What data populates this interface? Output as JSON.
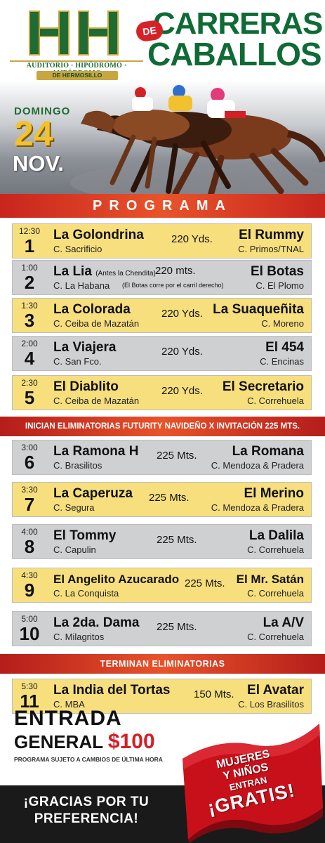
{
  "header": {
    "logo_text": "HH",
    "logo_banner": "AUDITORIO · HIPÓDROMO · AUTÓDROMO",
    "logo_sub": "DE HERMOSILLO",
    "title_line1": "CARRERAS",
    "title_de": "DE",
    "title_line2": "CABALLOS",
    "date_day": "DOMINGO",
    "date_num": "24",
    "date_month": "NOV."
  },
  "program_title": "PROGRAMA",
  "races_part1": [
    {
      "time": "12:30",
      "number": "1",
      "horse1": "La Golondrina",
      "owner1": "C. Sacrificio",
      "distance": "220 Yds.",
      "horse2": "El Rummy",
      "owner2": "C. Primos/TNAL",
      "color": "yellow"
    },
    {
      "time": "1:00",
      "number": "2",
      "horse1": "La Lia",
      "horse1_note": "(Antes la Chendita)",
      "owner1": "C. La Habana",
      "distance": "220 mts.",
      "note": "(El Botas corre por el carril derecho)",
      "horse2": "El Botas",
      "owner2": "C. El Plomo",
      "color": "gray"
    },
    {
      "time": "1:30",
      "number": "3",
      "horse1": "La Colorada",
      "owner1": "C. Ceiba de Mazatán",
      "distance": "220 Yds.",
      "horse2": "La Suaqueñita",
      "owner2": "C. Moreno",
      "color": "yellow"
    },
    {
      "time": "2:00",
      "number": "4",
      "horse1": "La Viajera",
      "owner1": "C. San Fco.",
      "distance": "220 Yds.",
      "horse2": "El 454",
      "owner2": "C. Encinas",
      "color": "gray"
    },
    {
      "time": "2:30",
      "number": "5",
      "horse1": "El Diablito",
      "owner1": "C. Ceiba de Mazatán",
      "distance": "220 Yds.",
      "horse2": "El Secretario",
      "owner2": "C. Correhuela",
      "color": "yellow"
    }
  ],
  "banner_start": "INICIAN ELIMINATORIAS FUTURITY NAVIDEÑO X INVITACIÓN 225 MTS.",
  "races_part2": [
    {
      "time": "3:00",
      "number": "6",
      "horse1": "La Ramona H",
      "owner1": "C. Brasilitos",
      "distance": "225 Mts.",
      "horse2": "La Romana",
      "owner2": "C. Mendoza & Pradera",
      "color": "gray"
    },
    {
      "time": "3:30",
      "number": "7",
      "horse1": "La Caperuza",
      "owner1": "C. Segura",
      "distance": "225 Mts.",
      "horse2": "El Merino",
      "owner2": "C. Mendoza & Pradera",
      "color": "yellow"
    },
    {
      "time": "4:00",
      "number": "8",
      "horse1": "El Tommy",
      "owner1": "C. Capulin",
      "distance": "225 Mts.",
      "horse2": "La Dalila",
      "owner2": "C. Correhuela",
      "color": "gray"
    },
    {
      "time": "4:30",
      "number": "9",
      "horse1": "El Angelito Azucarado",
      "owner1": "C. La Conquista",
      "distance": "225 Mts.",
      "horse2": "El Mr. Satán",
      "owner2": "C. Correhuela",
      "color": "yellow"
    },
    {
      "time": "5:00",
      "number": "10",
      "horse1": "La 2da. Dama",
      "owner1": "C. Milagritos",
      "distance": "225 Mts.",
      "horse2": "La A/V",
      "owner2": "C. Correhuela",
      "color": "gray"
    }
  ],
  "banner_end": "TERMINAN ELIMINATORIAS",
  "races_part3": [
    {
      "time": "5:30",
      "number": "11",
      "horse1": "La India del Tortas",
      "owner1": "C. MBA",
      "distance": "150 Mts.",
      "horse2": "El Avatar",
      "owner2": "C. Los Brasilitos",
      "color": "yellow"
    }
  ],
  "footer": {
    "entrada_line1": "ENTRADA",
    "entrada_line2": "GENERAL",
    "price": "$100",
    "disclaimer": "PROGRAMA SUJETO A CAMBIOS DE ÚLTIMA HORA",
    "thanks_line1": "¡GRACIAS POR TU",
    "thanks_line2": "PREFERENCIA!",
    "promo_line1": "MUJERES",
    "promo_line2": "Y NIÑOS",
    "promo_line3": "ENTRAN",
    "promo_line4": "¡GRATIS!"
  },
  "colors": {
    "brand_green": "#0f6b35",
    "accent_red": "#d32027",
    "row_yellow": "#f7df7d",
    "row_gray": "#cfd0d2",
    "gold": "#f2c12e"
  }
}
